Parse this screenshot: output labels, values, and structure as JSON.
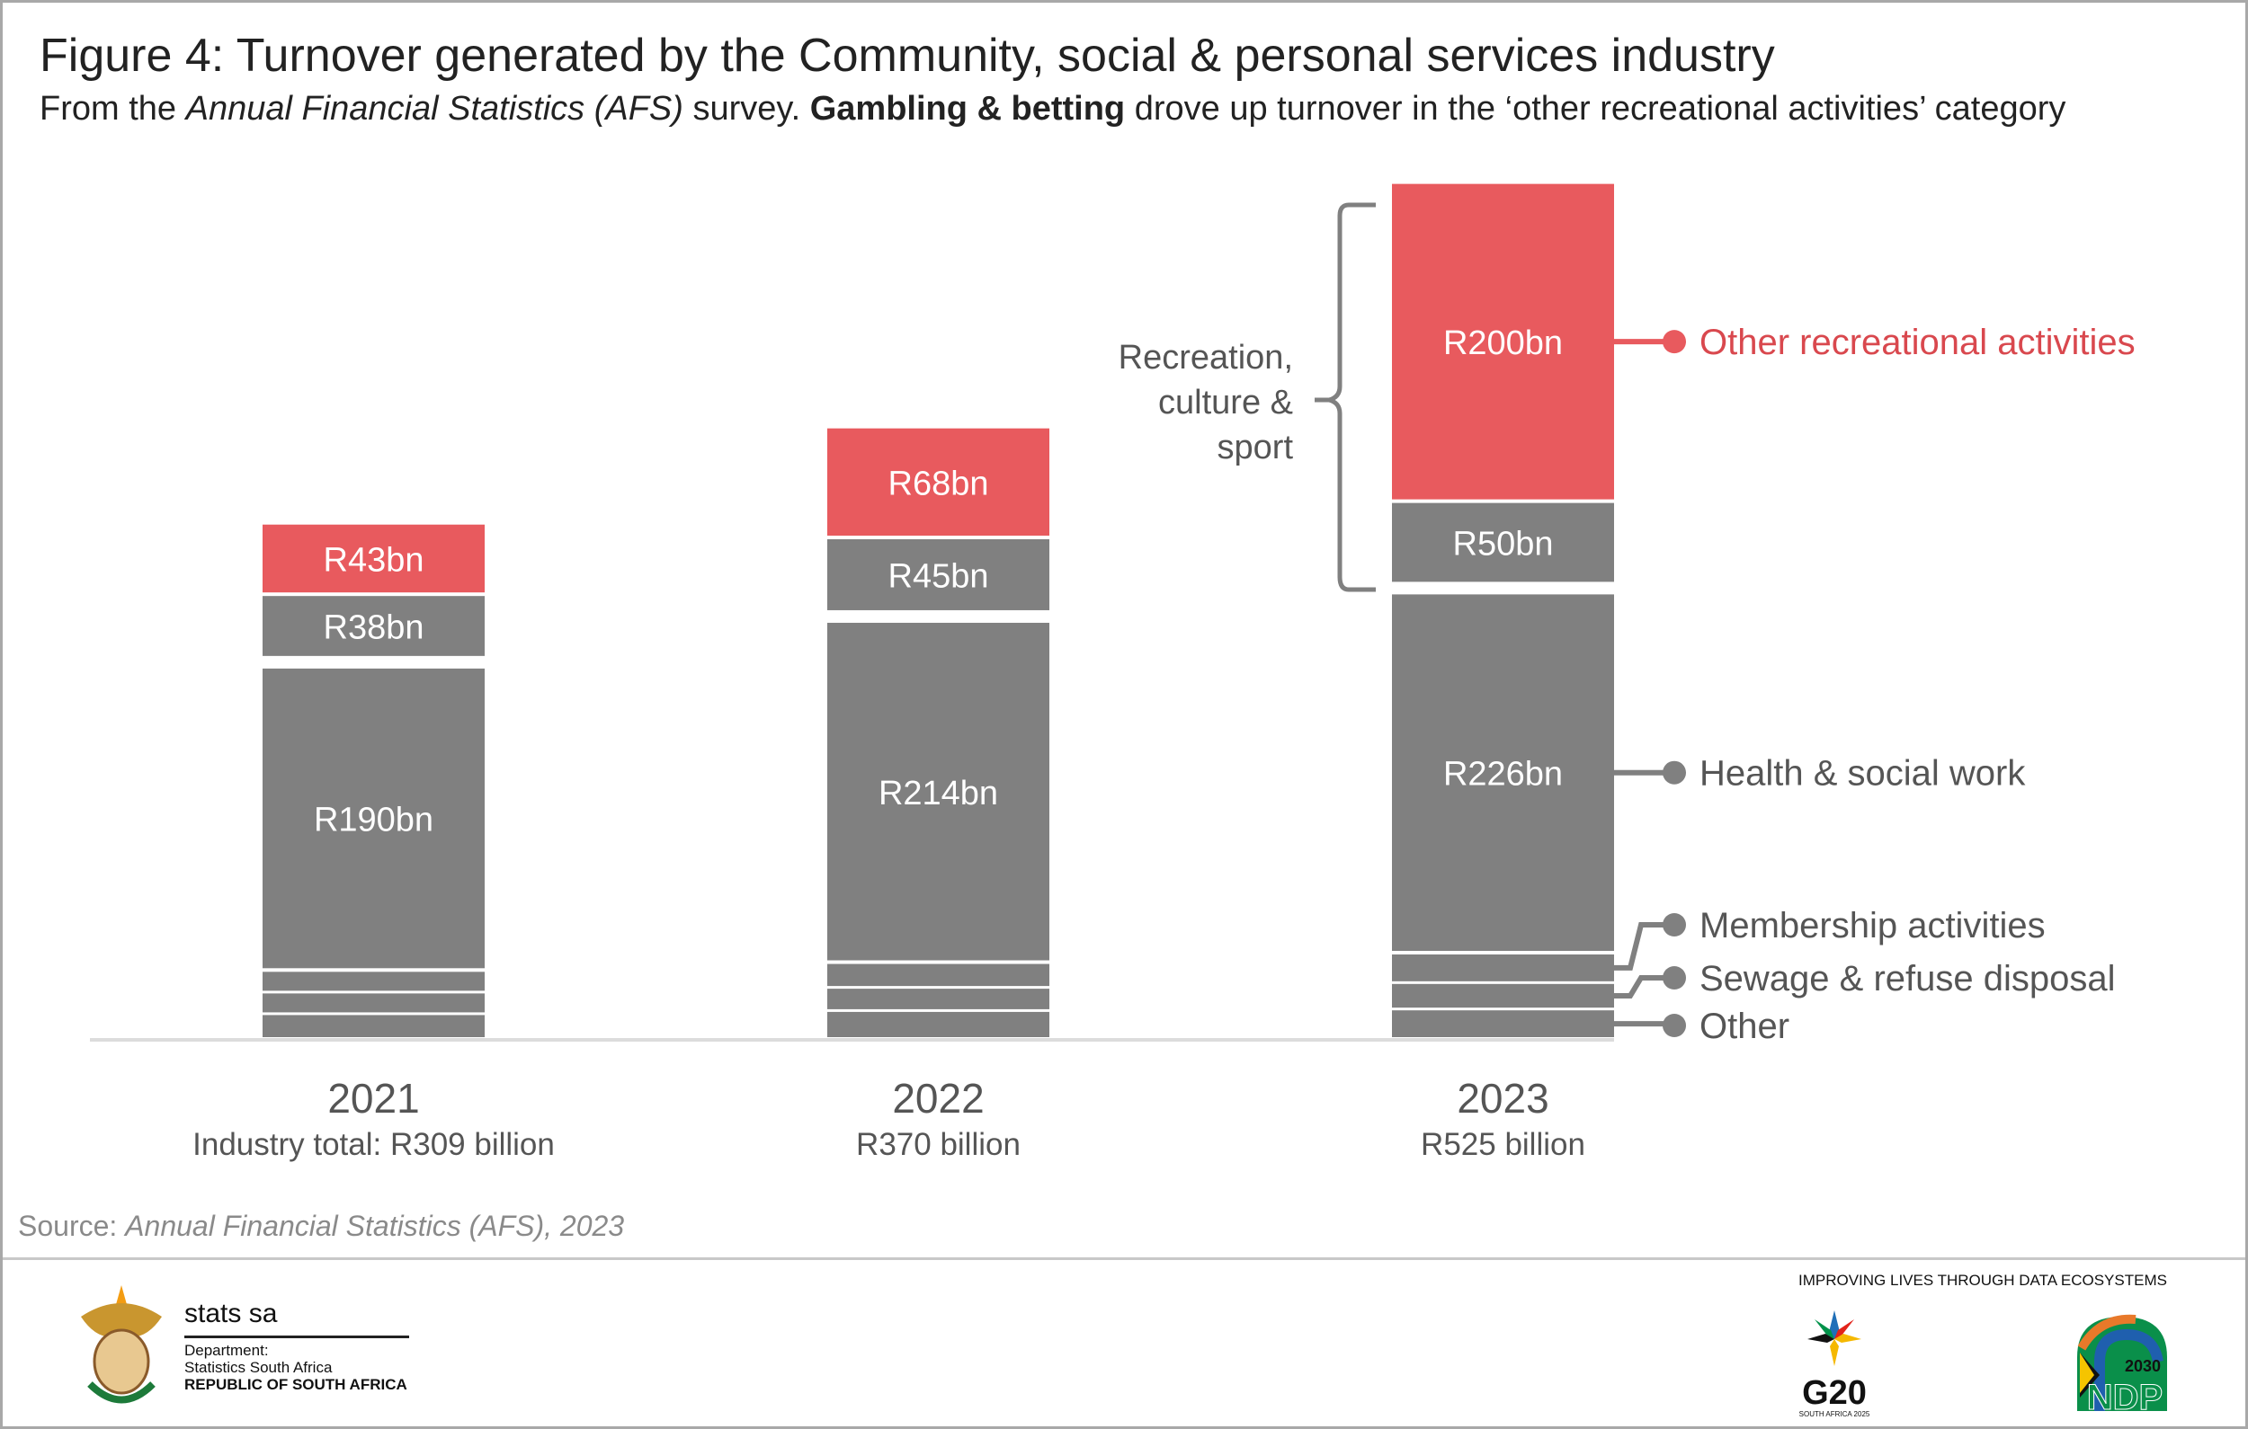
{
  "header": {
    "title": "Figure 4: Turnover generated by the Community, social & personal services industry",
    "subtitle_pre": "From the ",
    "subtitle_italic": "Annual Financial Statistics (AFS)",
    "subtitle_mid": " survey. ",
    "subtitle_bold": "Gambling & betting",
    "subtitle_post": " drove up turnover in the ‘other recreational activities’ category"
  },
  "chart_data": {
    "type": "bar",
    "stacked": true,
    "categories": [
      "2021",
      "2022",
      "2023"
    ],
    "category_sublabels": [
      "Industry total: R309 billion",
      "R370 billion",
      "R525 billion"
    ],
    "series": [
      {
        "name": "Other",
        "values": [
          14,
          16,
          17
        ],
        "color": "#808080",
        "labels": [
          "",
          "",
          ""
        ]
      },
      {
        "name": "Sewage & refuse disposal",
        "values": [
          12,
          13,
          15
        ],
        "color": "#808080",
        "labels": [
          "",
          "",
          ""
        ]
      },
      {
        "name": "Membership activities",
        "values": [
          12,
          14,
          17
        ],
        "color": "#808080",
        "labels": [
          "",
          "",
          ""
        ]
      },
      {
        "name": "Health & social work",
        "values": [
          190,
          214,
          226
        ],
        "color": "#808080",
        "labels": [
          "R190bn",
          "R214bn",
          "R226bn"
        ]
      },
      {
        "name": "",
        "values": [
          38,
          45,
          50
        ],
        "color": "#808080",
        "labels": [
          "R38bn",
          "R45bn",
          "R50bn"
        ]
      },
      {
        "name": "Other recreational activities",
        "values": [
          43,
          68,
          200
        ],
        "color": "#e85a5e",
        "labels": [
          "R43bn",
          "R68bn",
          "R200bn"
        ]
      }
    ],
    "bracket_label": [
      "Recreation,",
      "culture &",
      "sport"
    ],
    "unit": "R billion",
    "grid": false,
    "legend_placement": "right (direct labels on 2023 bar)"
  },
  "source": {
    "prefix": "Source: ",
    "text": "Annual Financial Statistics (AFS), 2023"
  },
  "footer": {
    "org": "stats sa",
    "dept1": "Department:",
    "dept2": "Statistics South Africa",
    "republic": "REPUBLIC OF SOUTH AFRICA",
    "tagline": "IMPROVING LIVES THROUGH DATA ECOSYSTEMS",
    "g20": "G20",
    "g20_sub": "SOUTH AFRICA 2025",
    "ndp": "NDP",
    "ndp_year": "2030"
  }
}
